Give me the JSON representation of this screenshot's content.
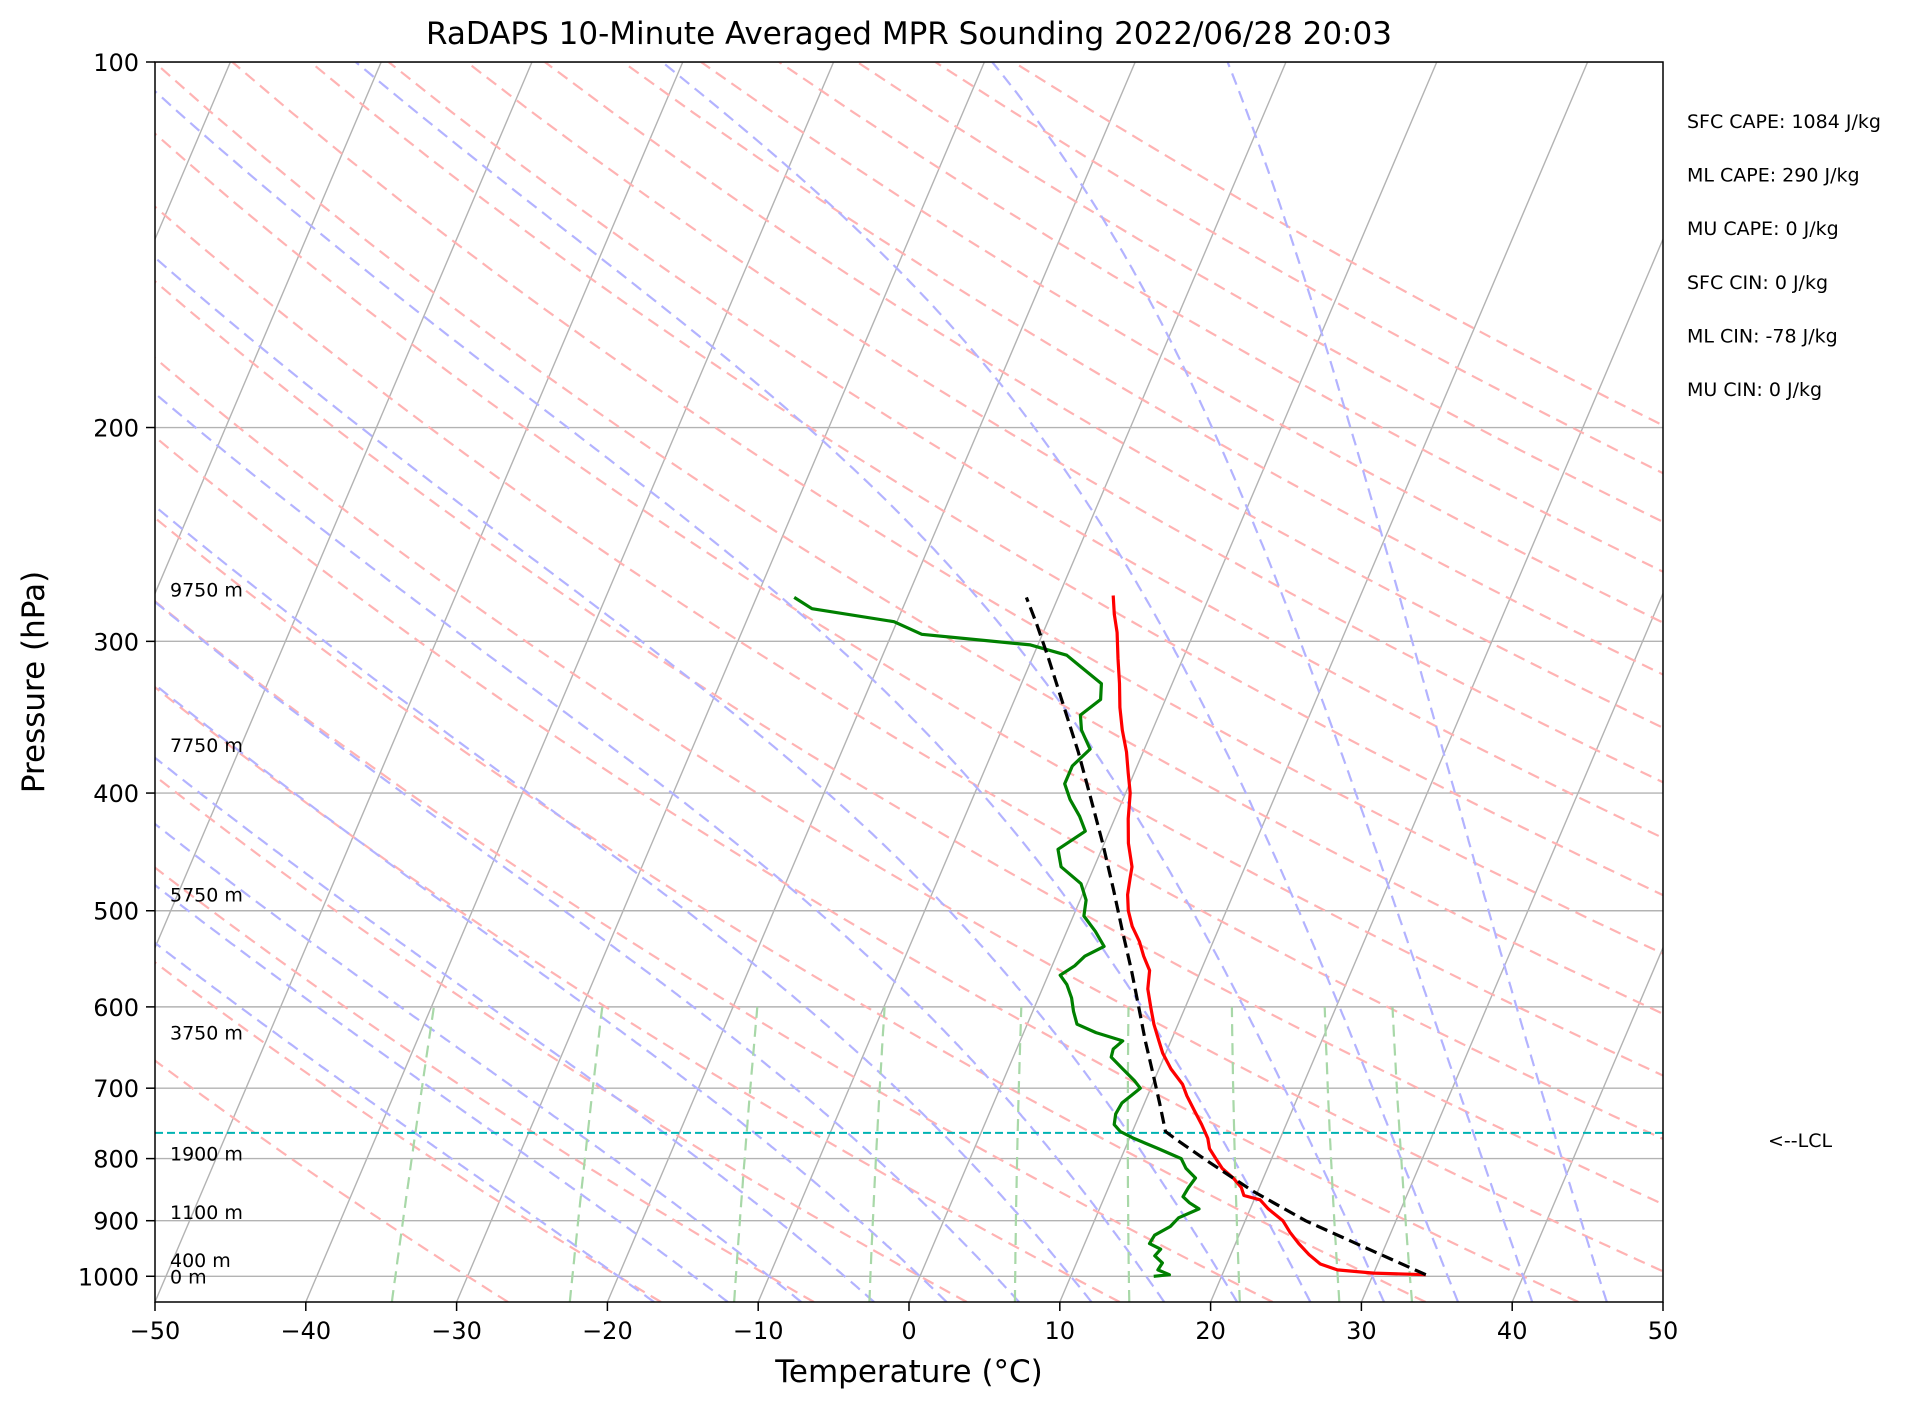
{
  "chart_data": {
    "type": "line",
    "title": "RaDAPS 10-Minute Averaged MPR Sounding 2022/06/28 20:03",
    "xlabel": "Temperature (°C)",
    "ylabel": "Pressure (hPa)",
    "xlim": [
      -50,
      50
    ],
    "ylim": [
      1050,
      100
    ],
    "y_scale": "log",
    "x_ticks": [
      -50,
      -40,
      -30,
      -20,
      -10,
      0,
      10,
      20,
      30,
      40,
      50
    ],
    "x_tick_labels": [
      "−50",
      "−40",
      "−30",
      "−20",
      "−10",
      "0",
      "10",
      "20",
      "30",
      "40",
      "50"
    ],
    "y_ticks": [
      100,
      200,
      300,
      400,
      500,
      600,
      700,
      800,
      900,
      1000
    ],
    "y_tick_labels": [
      "100",
      "200",
      "300",
      "400",
      "500",
      "600",
      "700",
      "800",
      "900",
      "1000"
    ],
    "grid": true,
    "series": [
      {
        "role": "temperature",
        "color": "#ff0000",
        "points": [
          {
            "p": 997,
            "t": 33.5
          },
          {
            "p": 994,
            "t": 30.0
          },
          {
            "p": 988,
            "t": 27.5
          },
          {
            "p": 977,
            "t": 26.2
          },
          {
            "p": 960,
            "t": 25.2
          },
          {
            "p": 940,
            "t": 24.2
          },
          {
            "p": 920,
            "t": 23.3
          },
          {
            "p": 900,
            "t": 22.5
          },
          {
            "p": 880,
            "t": 21.2
          },
          {
            "p": 865,
            "t": 20.4
          },
          {
            "p": 858,
            "t": 19.2
          },
          {
            "p": 845,
            "t": 18.8
          },
          {
            "p": 830,
            "t": 18.0
          },
          {
            "p": 815,
            "t": 17.0
          },
          {
            "p": 800,
            "t": 16.3
          },
          {
            "p": 785,
            "t": 15.6
          },
          {
            "p": 770,
            "t": 15.2
          },
          {
            "p": 750,
            "t": 14.4
          },
          {
            "p": 730,
            "t": 13.5
          },
          {
            "p": 710,
            "t": 12.6
          },
          {
            "p": 695,
            "t": 12.0
          },
          {
            "p": 675,
            "t": 10.8
          },
          {
            "p": 655,
            "t": 9.8
          },
          {
            "p": 640,
            "t": 9.2
          },
          {
            "p": 620,
            "t": 8.4
          },
          {
            "p": 600,
            "t": 7.7
          },
          {
            "p": 580,
            "t": 7.0
          },
          {
            "p": 560,
            "t": 6.6
          },
          {
            "p": 545,
            "t": 5.8
          },
          {
            "p": 530,
            "t": 5.1
          },
          {
            "p": 515,
            "t": 4.2
          },
          {
            "p": 500,
            "t": 3.5
          },
          {
            "p": 485,
            "t": 3.0
          },
          {
            "p": 470,
            "t": 2.7
          },
          {
            "p": 460,
            "t": 2.5
          },
          {
            "p": 440,
            "t": 1.6
          },
          {
            "p": 420,
            "t": 0.9
          },
          {
            "p": 400,
            "t": 0.3
          },
          {
            "p": 385,
            "t": -0.4
          },
          {
            "p": 370,
            "t": -1.1
          },
          {
            "p": 355,
            "t": -2.0
          },
          {
            "p": 340,
            "t": -2.8
          },
          {
            "p": 325,
            "t": -3.5
          },
          {
            "p": 310,
            "t": -4.3
          },
          {
            "p": 295,
            "t": -5.1
          },
          {
            "p": 285,
            "t": -5.8
          },
          {
            "p": 275,
            "t": -6.4
          }
        ]
      },
      {
        "role": "dewpoint",
        "color": "#008000",
        "points": [
          {
            "p": 1000,
            "t": 15.5
          },
          {
            "p": 997,
            "t": 16.5
          },
          {
            "p": 988,
            "t": 15.6
          },
          {
            "p": 975,
            "t": 15.7
          },
          {
            "p": 962,
            "t": 15.0
          },
          {
            "p": 950,
            "t": 15.2
          },
          {
            "p": 940,
            "t": 14.3
          },
          {
            "p": 925,
            "t": 14.4
          },
          {
            "p": 910,
            "t": 15.2
          },
          {
            "p": 895,
            "t": 15.5
          },
          {
            "p": 880,
            "t": 16.6
          },
          {
            "p": 870,
            "t": 15.8
          },
          {
            "p": 860,
            "t": 15.2
          },
          {
            "p": 845,
            "t": 15.3
          },
          {
            "p": 830,
            "t": 15.5
          },
          {
            "p": 815,
            "t": 14.6
          },
          {
            "p": 800,
            "t": 14.0
          },
          {
            "p": 785,
            "t": 12.2
          },
          {
            "p": 770,
            "t": 10.3
          },
          {
            "p": 760,
            "t": 9.2
          },
          {
            "p": 750,
            "t": 8.6
          },
          {
            "p": 735,
            "t": 8.4
          },
          {
            "p": 720,
            "t": 8.5
          },
          {
            "p": 710,
            "t": 8.9
          },
          {
            "p": 700,
            "t": 9.3
          },
          {
            "p": 690,
            "t": 8.7
          },
          {
            "p": 675,
            "t": 7.6
          },
          {
            "p": 660,
            "t": 6.5
          },
          {
            "p": 650,
            "t": 6.4
          },
          {
            "p": 640,
            "t": 6.8
          },
          {
            "p": 630,
            "t": 4.8
          },
          {
            "p": 620,
            "t": 3.3
          },
          {
            "p": 605,
            "t": 2.7
          },
          {
            "p": 590,
            "t": 2.2
          },
          {
            "p": 575,
            "t": 1.5
          },
          {
            "p": 565,
            "t": 0.8
          },
          {
            "p": 555,
            "t": 1.5
          },
          {
            "p": 545,
            "t": 1.9
          },
          {
            "p": 535,
            "t": 2.9
          },
          {
            "p": 520,
            "t": 1.9
          },
          {
            "p": 505,
            "t": 0.7
          },
          {
            "p": 490,
            "t": 0.4
          },
          {
            "p": 475,
            "t": -0.4
          },
          {
            "p": 460,
            "t": -2.2
          },
          {
            "p": 445,
            "t": -2.9
          },
          {
            "p": 430,
            "t": -1.6
          },
          {
            "p": 418,
            "t": -2.4
          },
          {
            "p": 405,
            "t": -3.5
          },
          {
            "p": 393,
            "t": -4.3
          },
          {
            "p": 380,
            "t": -4.3
          },
          {
            "p": 368,
            "t": -3.6
          },
          {
            "p": 355,
            "t": -4.7
          },
          {
            "p": 345,
            "t": -5.2
          },
          {
            "p": 335,
            "t": -4.3
          },
          {
            "p": 325,
            "t": -4.7
          },
          {
            "p": 315,
            "t": -6.5
          },
          {
            "p": 308,
            "t": -7.8
          },
          {
            "p": 302,
            "t": -10.5
          },
          {
            "p": 296,
            "t": -18.0
          },
          {
            "p": 289,
            "t": -20.2
          },
          {
            "p": 282,
            "t": -26.0
          },
          {
            "p": 276,
            "t": -27.5
          }
        ]
      },
      {
        "role": "parcel",
        "color": "#000000",
        "points": [
          {
            "p": 997,
            "t": 33.5
          },
          {
            "p": 950,
            "t": 29.0
          },
          {
            "p": 900,
            "t": 24.0
          },
          {
            "p": 850,
            "t": 19.6
          },
          {
            "p": 800,
            "t": 15.5
          },
          {
            "p": 770,
            "t": 13.0
          },
          {
            "p": 760,
            "t": 12.2
          },
          {
            "p": 720,
            "t": 11.0
          },
          {
            "p": 680,
            "t": 9.7
          },
          {
            "p": 640,
            "t": 8.3
          },
          {
            "p": 600,
            "t": 6.9
          },
          {
            "p": 560,
            "t": 5.4
          },
          {
            "p": 520,
            "t": 3.7
          },
          {
            "p": 480,
            "t": 1.9
          },
          {
            "p": 440,
            "t": -0.1
          },
          {
            "p": 400,
            "t": -2.4
          },
          {
            "p": 370,
            "t": -4.3
          },
          {
            "p": 340,
            "t": -6.5
          },
          {
            "p": 310,
            "t": -8.9
          },
          {
            "p": 290,
            "t": -10.7
          },
          {
            "p": 276,
            "t": -12.1
          }
        ]
      }
    ],
    "lcl": {
      "p": 762,
      "label": "<--LCL",
      "color": "#00b3b3"
    },
    "height_labels": [
      {
        "p": 1000,
        "text": "0 m"
      },
      {
        "p": 970,
        "text": "400 m"
      },
      {
        "p": 885,
        "text": "1100 m"
      },
      {
        "p": 792,
        "text": "1900 m"
      },
      {
        "p": 630,
        "text": "3750 m"
      },
      {
        "p": 485,
        "text": "5750 m"
      },
      {
        "p": 365,
        "text": "7750 m"
      },
      {
        "p": 272,
        "text": "9750 m"
      }
    ],
    "parameters": [
      "SFC CAPE: 1084 J/kg",
      "ML CAPE: 290 J/kg",
      "MU CAPE: 0 J/kg",
      "SFC CIN: 0 J/kg",
      "ML CIN: -78 J/kg",
      "MU CIN: 0 J/kg"
    ],
    "colors": {
      "isotherm": "#b3b3b3",
      "dry_adiabat": "#ffb3b3",
      "moist_adiabat": "#b3b3ff",
      "mixing_ratio": "#a8d8a8"
    }
  }
}
